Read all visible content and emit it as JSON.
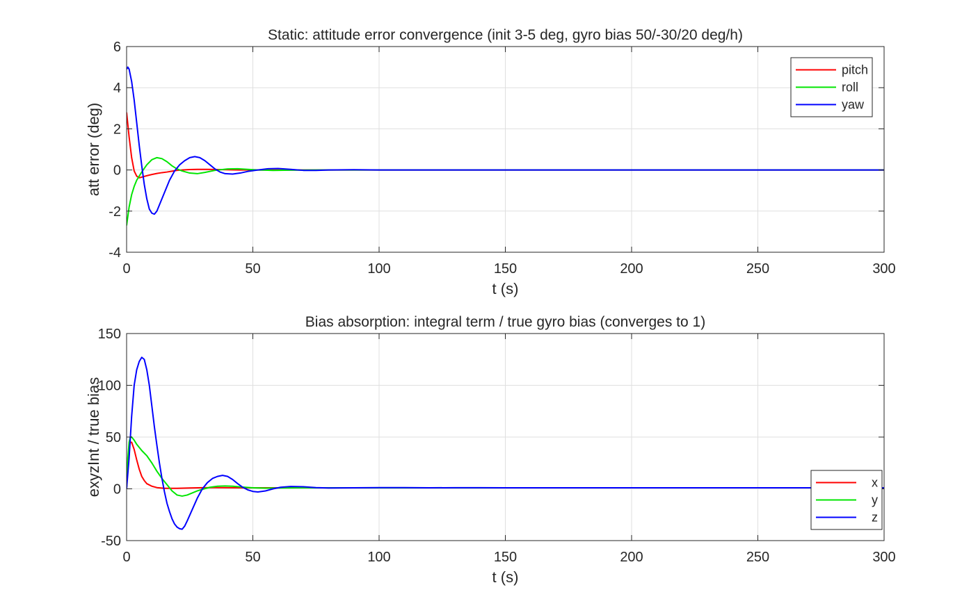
{
  "chart_data": [
    {
      "type": "line",
      "title": "Static: attitude error convergence (init 3-5 deg, gyro bias 50/-30/20 deg/h)",
      "xlabel": "t (s)",
      "ylabel": "att error (deg)",
      "xlim": [
        0,
        300
      ],
      "ylim": [
        -4,
        6
      ],
      "xticks": [
        0,
        50,
        100,
        150,
        200,
        250,
        300
      ],
      "yticks": [
        -4,
        -2,
        0,
        2,
        4,
        6
      ],
      "grid": true,
      "legend_position": "top-right",
      "series": [
        {
          "name": "pitch",
          "color": "#ff0000",
          "points": [
            [
              0,
              2.8
            ],
            [
              1,
              1.6
            ],
            [
              2,
              0.6
            ],
            [
              3,
              -0.05
            ],
            [
              4,
              -0.3
            ],
            [
              5,
              -0.38
            ],
            [
              6,
              -0.35
            ],
            [
              8,
              -0.28
            ],
            [
              10,
              -0.22
            ],
            [
              12,
              -0.17
            ],
            [
              14,
              -0.13
            ],
            [
              16,
              -0.1
            ],
            [
              18,
              -0.06
            ],
            [
              20,
              -0.02
            ],
            [
              22,
              0.0
            ],
            [
              25,
              0.02
            ],
            [
              28,
              0.03
            ],
            [
              32,
              0.03
            ],
            [
              36,
              0.02
            ],
            [
              40,
              0.01
            ],
            [
              45,
              0.0
            ],
            [
              55,
              0.0
            ],
            [
              70,
              0.0
            ],
            [
              100,
              0.0
            ],
            [
              150,
              0.0
            ],
            [
              200,
              0.0
            ],
            [
              250,
              0.0
            ],
            [
              300,
              0.0
            ]
          ]
        },
        {
          "name": "roll",
          "color": "#00e600",
          "points": [
            [
              0,
              -2.7
            ],
            [
              1,
              -1.8
            ],
            [
              2,
              -1.2
            ],
            [
              3,
              -0.8
            ],
            [
              4,
              -0.5
            ],
            [
              6,
              -0.1
            ],
            [
              8,
              0.25
            ],
            [
              10,
              0.5
            ],
            [
              12,
              0.6
            ],
            [
              14,
              0.55
            ],
            [
              16,
              0.4
            ],
            [
              18,
              0.2
            ],
            [
              20,
              0.05
            ],
            [
              22,
              -0.05
            ],
            [
              25,
              -0.15
            ],
            [
              28,
              -0.18
            ],
            [
              31,
              -0.12
            ],
            [
              35,
              -0.02
            ],
            [
              40,
              0.05
            ],
            [
              44,
              0.06
            ],
            [
              48,
              0.03
            ],
            [
              52,
              0.0
            ],
            [
              58,
              -0.02
            ],
            [
              65,
              -0.01
            ],
            [
              75,
              0.0
            ],
            [
              100,
              0.0
            ],
            [
              150,
              0.0
            ],
            [
              200,
              0.0
            ],
            [
              250,
              0.0
            ],
            [
              300,
              0.0
            ]
          ]
        },
        {
          "name": "yaw",
          "color": "#0000ff",
          "points": [
            [
              0,
              4.9
            ],
            [
              0.5,
              5.0
            ],
            [
              1,
              4.9
            ],
            [
              2,
              4.3
            ],
            [
              3,
              3.4
            ],
            [
              4,
              2.3
            ],
            [
              5,
              1.2
            ],
            [
              6,
              0.2
            ],
            [
              7,
              -0.7
            ],
            [
              8,
              -1.4
            ],
            [
              9,
              -1.9
            ],
            [
              10,
              -2.1
            ],
            [
              11,
              -2.15
            ],
            [
              12,
              -2.0
            ],
            [
              13,
              -1.7
            ],
            [
              15,
              -1.1
            ],
            [
              17,
              -0.5
            ],
            [
              19,
              -0.05
            ],
            [
              21,
              0.25
            ],
            [
              23,
              0.45
            ],
            [
              25,
              0.6
            ],
            [
              27,
              0.65
            ],
            [
              29,
              0.6
            ],
            [
              31,
              0.45
            ],
            [
              33,
              0.25
            ],
            [
              35,
              0.05
            ],
            [
              37,
              -0.1
            ],
            [
              39,
              -0.18
            ],
            [
              42,
              -0.2
            ],
            [
              45,
              -0.15
            ],
            [
              48,
              -0.07
            ],
            [
              52,
              0.0
            ],
            [
              56,
              0.06
            ],
            [
              60,
              0.07
            ],
            [
              65,
              0.03
            ],
            [
              70,
              -0.02
            ],
            [
              75,
              -0.02
            ],
            [
              80,
              0.0
            ],
            [
              90,
              0.01
            ],
            [
              100,
              0.0
            ],
            [
              150,
              0.0
            ],
            [
              200,
              0.0
            ],
            [
              250,
              0.0
            ],
            [
              300,
              0.0
            ]
          ]
        }
      ]
    },
    {
      "type": "line",
      "title": "Bias absorption: integral term / true gyro bias (converges to 1)",
      "xlabel": "t (s)",
      "ylabel": "exyzInt / true bias",
      "xlim": [
        0,
        300
      ],
      "ylim": [
        -50,
        150
      ],
      "xticks": [
        0,
        50,
        100,
        150,
        200,
        250,
        300
      ],
      "yticks": [
        -50,
        0,
        50,
        100,
        150
      ],
      "grid": true,
      "legend_position": "bottom-right",
      "series": [
        {
          "name": "x",
          "color": "#ff0000",
          "points": [
            [
              0,
              0
            ],
            [
              0.5,
              25
            ],
            [
              1,
              40
            ],
            [
              1.5,
              45
            ],
            [
              2,
              45
            ],
            [
              3,
              38
            ],
            [
              4,
              28
            ],
            [
              5,
              19
            ],
            [
              6,
              12
            ],
            [
              7,
              8
            ],
            [
              8,
              5
            ],
            [
              10,
              2.5
            ],
            [
              12,
              1.2
            ],
            [
              15,
              0.5
            ],
            [
              20,
              0.5
            ],
            [
              25,
              0.8
            ],
            [
              30,
              1.1
            ],
            [
              35,
              1.2
            ],
            [
              40,
              1.1
            ],
            [
              45,
              1.0
            ],
            [
              55,
              1.0
            ],
            [
              70,
              1.0
            ],
            [
              100,
              1.0
            ],
            [
              150,
              1.0
            ],
            [
              200,
              1.0
            ],
            [
              250,
              1.0
            ],
            [
              300,
              1.0
            ]
          ]
        },
        {
          "name": "y",
          "color": "#00e600",
          "points": [
            [
              0,
              0
            ],
            [
              0.5,
              30
            ],
            [
              1,
              45
            ],
            [
              1.5,
              50
            ],
            [
              2,
              50
            ],
            [
              3,
              47
            ],
            [
              4,
              43
            ],
            [
              6,
              37
            ],
            [
              8,
              32
            ],
            [
              10,
              25
            ],
            [
              12,
              17
            ],
            [
              14,
              10
            ],
            [
              16,
              4
            ],
            [
              18,
              -2
            ],
            [
              20,
              -6
            ],
            [
              22,
              -7
            ],
            [
              24,
              -6
            ],
            [
              26,
              -4
            ],
            [
              28,
              -2
            ],
            [
              30,
              -0.5
            ],
            [
              33,
              1.5
            ],
            [
              36,
              2.5
            ],
            [
              39,
              2.8
            ],
            [
              42,
              2.5
            ],
            [
              46,
              1.7
            ],
            [
              50,
              1.0
            ],
            [
              55,
              0.7
            ],
            [
              60,
              0.8
            ],
            [
              70,
              1.0
            ],
            [
              100,
              1.0
            ],
            [
              150,
              1.0
            ],
            [
              200,
              1.0
            ],
            [
              250,
              1.0
            ],
            [
              300,
              1.0
            ]
          ]
        },
        {
          "name": "z",
          "color": "#0000ff",
          "points": [
            [
              0,
              0
            ],
            [
              1,
              30
            ],
            [
              2,
              70
            ],
            [
              3,
              100
            ],
            [
              4,
              115
            ],
            [
              5,
              123
            ],
            [
              6,
              127
            ],
            [
              7,
              125
            ],
            [
              8,
              115
            ],
            [
              9,
              100
            ],
            [
              10,
              80
            ],
            [
              11,
              60
            ],
            [
              12,
              42
            ],
            [
              13,
              25
            ],
            [
              14,
              10
            ],
            [
              15,
              -3
            ],
            [
              16,
              -14
            ],
            [
              17,
              -22
            ],
            [
              18,
              -29
            ],
            [
              19,
              -34
            ],
            [
              20,
              -37
            ],
            [
              21,
              -38.5
            ],
            [
              22,
              -39
            ],
            [
              23,
              -36
            ],
            [
              24,
              -31
            ],
            [
              26,
              -20
            ],
            [
              28,
              -9
            ],
            [
              30,
              0
            ],
            [
              32,
              6
            ],
            [
              34,
              10
            ],
            [
              36,
              12
            ],
            [
              38,
              13
            ],
            [
              40,
              12
            ],
            [
              42,
              9
            ],
            [
              44,
              5
            ],
            [
              46,
              1.5
            ],
            [
              48,
              -1
            ],
            [
              50,
              -2.5
            ],
            [
              52,
              -3
            ],
            [
              55,
              -2
            ],
            [
              58,
              0
            ],
            [
              61,
              1.5
            ],
            [
              65,
              2.3
            ],
            [
              70,
              2
            ],
            [
              75,
              1.2
            ],
            [
              80,
              0.8
            ],
            [
              90,
              1.0
            ],
            [
              100,
              1.2
            ],
            [
              110,
              1.2
            ],
            [
              120,
              1.0
            ],
            [
              130,
              1.1
            ],
            [
              140,
              1.1
            ],
            [
              150,
              1.0
            ],
            [
              200,
              1.0
            ],
            [
              250,
              1.0
            ],
            [
              300,
              1.0
            ]
          ]
        }
      ]
    }
  ]
}
